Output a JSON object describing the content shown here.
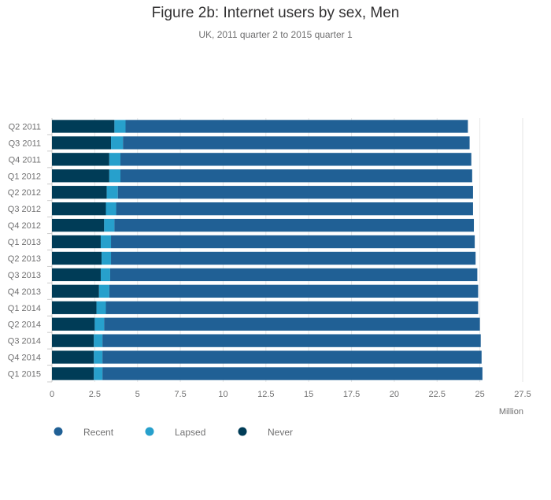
{
  "chart_data": {
    "type": "bar",
    "orientation": "horizontal",
    "stacked": true,
    "title": "Figure 2b: Internet users by sex, Men",
    "subtitle": "UK, 2011 quarter 2 to 2015 quarter 1",
    "xlabel": "Million",
    "xlim": [
      0,
      27.5
    ],
    "xticks": [
      "0",
      "2.5",
      "5",
      "7.5",
      "10",
      "12.5",
      "15",
      "17.5",
      "20",
      "22.5",
      "25",
      "27.5"
    ],
    "grid": true,
    "legend_position": "bottom-left",
    "categories": [
      "Q2 2011",
      "Q3 2011",
      "Q4 2011",
      "Q1 2012",
      "Q2 2012",
      "Q3 2012",
      "Q4 2012",
      "Q1 2013",
      "Q2 2013",
      "Q3 2013",
      "Q4 2013",
      "Q1 2014",
      "Q2 2014",
      "Q3 2014",
      "Q4 2014",
      "Q1 2015"
    ],
    "series": [
      {
        "name": "Never",
        "color": "#003c57",
        "values": [
          3.65,
          3.45,
          3.35,
          3.35,
          3.2,
          3.15,
          3.05,
          2.85,
          2.9,
          2.85,
          2.75,
          2.6,
          2.5,
          2.45,
          2.45,
          2.45
        ]
      },
      {
        "name": "Lapsed",
        "color": "#27a0cc",
        "values": [
          0.65,
          0.7,
          0.65,
          0.65,
          0.65,
          0.6,
          0.6,
          0.6,
          0.55,
          0.55,
          0.6,
          0.55,
          0.55,
          0.5,
          0.5,
          0.5
        ]
      },
      {
        "name": "Recent",
        "color": "#206095",
        "values": [
          20.0,
          20.25,
          20.5,
          20.55,
          20.75,
          20.85,
          21.0,
          21.25,
          21.3,
          21.45,
          21.55,
          21.75,
          21.95,
          22.1,
          22.15,
          22.2
        ]
      }
    ],
    "legend": [
      {
        "name": "Recent",
        "color": "#206095"
      },
      {
        "name": "Lapsed",
        "color": "#27a0cc"
      },
      {
        "name": "Never",
        "color": "#003c57"
      }
    ]
  }
}
